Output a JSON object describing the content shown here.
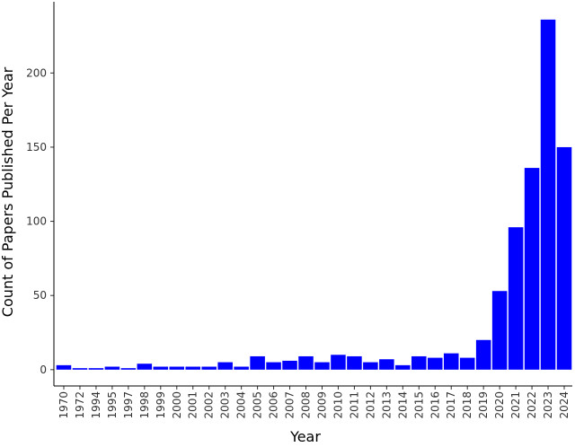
{
  "chart_data": {
    "type": "bar",
    "x_label": "Year",
    "y_label": "Count of Papers Published Per Year",
    "categories": [
      "1970",
      "1972",
      "1994",
      "1995",
      "1997",
      "1998",
      "1999",
      "2000",
      "2001",
      "2002",
      "2003",
      "2004",
      "2005",
      "2006",
      "2007",
      "2008",
      "2009",
      "2010",
      "2011",
      "2012",
      "2013",
      "2014",
      "2015",
      "2016",
      "2017",
      "2018",
      "2019",
      "2020",
      "2021",
      "2022",
      "2023",
      "2024"
    ],
    "values": [
      3,
      1,
      1,
      2,
      1,
      4,
      2,
      2,
      2,
      2,
      5,
      2,
      9,
      5,
      6,
      9,
      5,
      10,
      9,
      5,
      7,
      3,
      9,
      8,
      11,
      8,
      20,
      53,
      96,
      136,
      236,
      150
    ],
    "color": "#0000ff",
    "ylim": [
      -11,
      248
    ],
    "yticks": [
      0,
      50,
      100,
      150,
      200
    ]
  }
}
